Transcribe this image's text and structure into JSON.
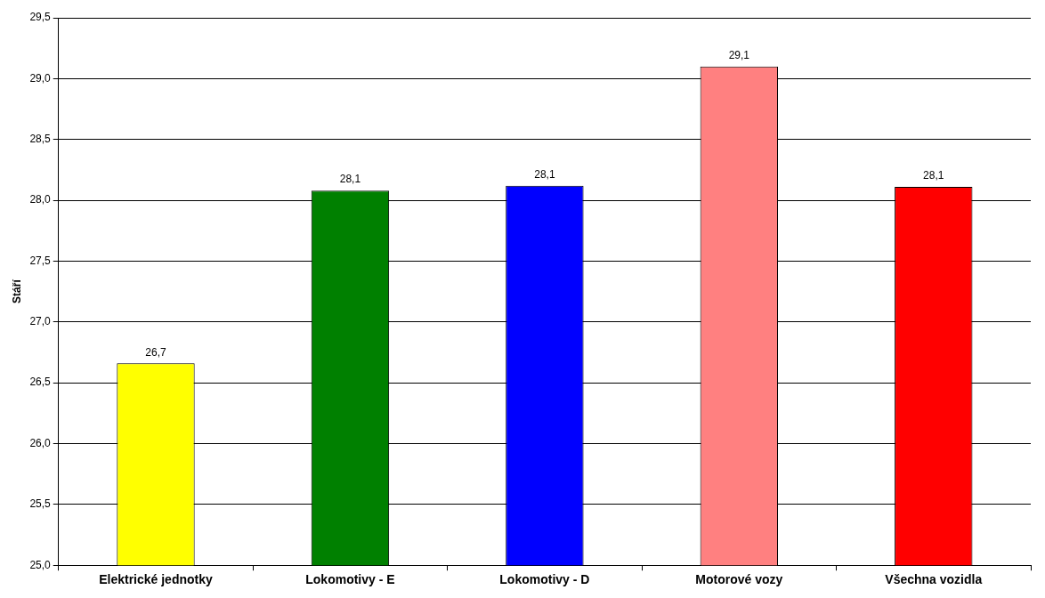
{
  "chart_data": {
    "type": "bar",
    "ylabel": "Stáří",
    "categories": [
      "Elektrické jednotky",
      "Lokomotivy - E",
      "Lokomotivy - D",
      "Motorové vozy",
      "Všechna vozidla"
    ],
    "values": [
      26.66,
      28.08,
      28.12,
      29.1,
      28.11
    ],
    "colors": [
      "#ffff00",
      "#008000",
      "#0000ff",
      "#ff8080",
      "#ff0000"
    ],
    "value_labels": [
      "26,7",
      "28,1",
      "28,1",
      "29,1",
      "28,1"
    ],
    "ylim": [
      25,
      29.5
    ],
    "yticks": [
      {
        "value": 25,
        "label": "25,0"
      },
      {
        "value": 25.5,
        "label": "25,5"
      },
      {
        "value": 26,
        "label": "26,0"
      },
      {
        "value": 26.5,
        "label": "26,5"
      },
      {
        "value": 27,
        "label": "27,0"
      },
      {
        "value": 27.5,
        "label": "27,5"
      },
      {
        "value": 28,
        "label": "28,0"
      },
      {
        "value": 28.5,
        "label": "28,5"
      },
      {
        "value": 29,
        "label": "29,0"
      },
      {
        "value": 29.5,
        "label": "29,5"
      }
    ],
    "grid": "y",
    "legend": false
  }
}
